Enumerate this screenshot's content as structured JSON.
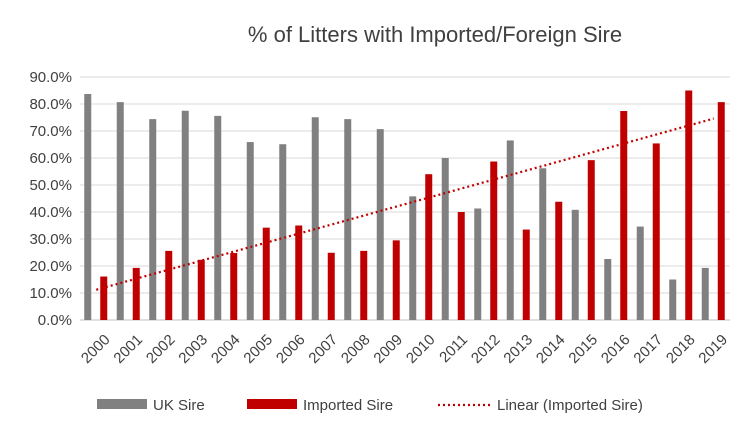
{
  "chart_data": {
    "type": "bar",
    "title": "% of Litters with Imported/Foreign Sire",
    "xlabel": "",
    "ylabel": "",
    "ylim": [
      0,
      90
    ],
    "yticks": [
      "0.0%",
      "10.0%",
      "20.0%",
      "30.0%",
      "40.0%",
      "50.0%",
      "60.0%",
      "70.0%",
      "80.0%",
      "90.0%"
    ],
    "grid": true,
    "legend_position": "bottom",
    "categories": [
      "2000",
      "2001",
      "2002",
      "2003",
      "2004",
      "2005",
      "2006",
      "2007",
      "2008",
      "2009",
      "2010",
      "2011",
      "2012",
      "2013",
      "2014",
      "2015",
      "2016",
      "2017",
      "2018",
      "2019"
    ],
    "series": [
      {
        "name": "UK Sire",
        "color": "#808080",
        "values": [
          83.7,
          80.7,
          74.4,
          77.5,
          75.6,
          65.9,
          65.1,
          75.1,
          74.4,
          70.7,
          45.8,
          60.0,
          41.3,
          66.5,
          56.2,
          40.8,
          22.6,
          34.6,
          15.0,
          19.3
        ]
      },
      {
        "name": "Imported Sire",
        "color": "#c00000",
        "values": [
          16.1,
          19.3,
          25.6,
          22.3,
          24.8,
          34.2,
          35.0,
          24.9,
          25.6,
          29.5,
          54.0,
          40.0,
          58.7,
          33.5,
          43.8,
          59.2,
          77.4,
          65.4,
          85.0,
          80.7
        ]
      }
    ],
    "trendline": {
      "name": "Linear (Imported Sire)",
      "color": "#c00000",
      "style": "dotted",
      "of_series": "Imported Sire",
      "start": 11.2,
      "end": 74.6
    }
  }
}
